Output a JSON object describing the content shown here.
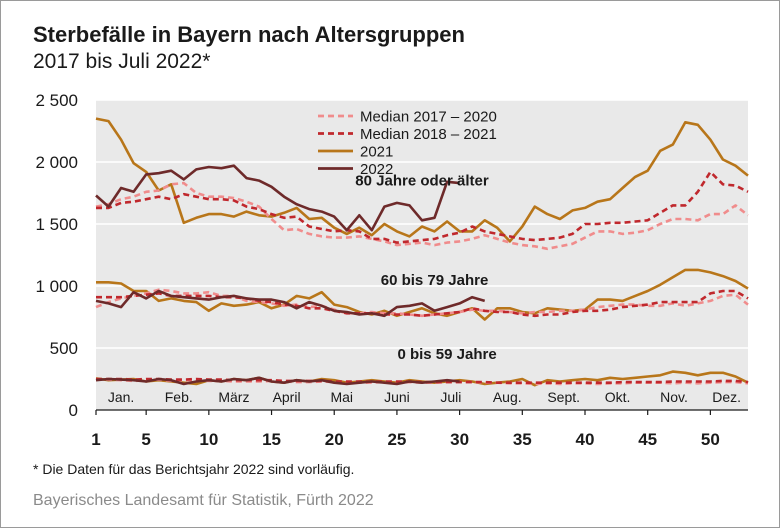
{
  "title": "Sterbefälle in Bayern nach Altersgruppen",
  "subtitle": "2017 bis Juli 2022*",
  "footnote": "* Die Daten für das Berichtsjahr 2022 sind vorläufig.",
  "source": "Bayerisches Landesamt für Statistik, Fürth 2022",
  "chart_data": {
    "type": "line",
    "xlim": [
      1,
      53
    ],
    "ylim": [
      0,
      2500
    ],
    "x_ticks": [
      1,
      5,
      10,
      15,
      20,
      25,
      30,
      35,
      40,
      45,
      50
    ],
    "y_ticks": [
      {
        "value": 0,
        "label": "0"
      },
      {
        "value": 500,
        "label": "500"
      },
      {
        "value": 1000,
        "label": "1 000"
      },
      {
        "value": 1500,
        "label": "1 500"
      },
      {
        "value": 2000,
        "label": "2 000"
      },
      {
        "value": 2500,
        "label": "2 500"
      }
    ],
    "months": [
      {
        "label": "Jan.",
        "week": 3
      },
      {
        "label": "Feb.",
        "week": 7.6
      },
      {
        "label": "März",
        "week": 12
      },
      {
        "label": "April",
        "week": 16.2
      },
      {
        "label": "Mai",
        "week": 20.6
      },
      {
        "label": "Juni",
        "week": 25
      },
      {
        "label": "Juli",
        "week": 29.3
      },
      {
        "label": "Aug.",
        "week": 33.8
      },
      {
        "label": "Sept.",
        "week": 38.3
      },
      {
        "label": "Okt.",
        "week": 42.6
      },
      {
        "label": "Nov.",
        "week": 47.1
      },
      {
        "label": "Dez.",
        "week": 51.3
      }
    ],
    "grid": true,
    "legend_position": "top-right",
    "series_styles": [
      {
        "name": "Median 2017 – 2020",
        "color": "#f08c8c",
        "dash": true
      },
      {
        "name": "Median 2018 – 2021",
        "color": "#c0282d",
        "dash": true
      },
      {
        "name": "2021",
        "color": "#b8761a",
        "dash": false
      },
      {
        "name": "2022",
        "color": "#6e2a2a",
        "dash": false
      }
    ],
    "groups": [
      {
        "label": "80 Jahre oder älter",
        "label_week": 27,
        "label_value": 1810,
        "series": [
          {
            "style": 0,
            "values": [
              1640,
              1660,
              1700,
              1720,
              1760,
              1770,
              1820,
              1830,
              1750,
              1720,
              1720,
              1710,
              1680,
              1640,
              1540,
              1450,
              1460,
              1420,
              1400,
              1390,
              1390,
              1400,
              1380,
              1360,
              1330,
              1340,
              1350,
              1330,
              1350,
              1360,
              1380,
              1410,
              1380,
              1350,
              1330,
              1320,
              1300,
              1320,
              1340,
              1390,
              1440,
              1440,
              1420,
              1430,
              1450,
              1500,
              1540,
              1540,
              1530,
              1580,
              1580,
              1650,
              1570
            ]
          },
          {
            "style": 1,
            "values": [
              1630,
              1630,
              1670,
              1680,
              1700,
              1720,
              1700,
              1740,
              1720,
              1700,
              1700,
              1690,
              1640,
              1620,
              1580,
              1550,
              1560,
              1480,
              1460,
              1440,
              1450,
              1440,
              1380,
              1380,
              1350,
              1360,
              1370,
              1380,
              1410,
              1430,
              1480,
              1440,
              1420,
              1400,
              1380,
              1370,
              1380,
              1390,
              1420,
              1500,
              1500,
              1510,
              1510,
              1520,
              1530,
              1590,
              1650,
              1650,
              1760,
              1920,
              1820,
              1810,
              1760
            ]
          },
          {
            "style": 2,
            "values": [
              2350,
              2330,
              2180,
              1990,
              1920,
              1770,
              1820,
              1510,
              1550,
              1580,
              1580,
              1560,
              1600,
              1570,
              1560,
              1590,
              1630,
              1540,
              1550,
              1470,
              1420,
              1470,
              1410,
              1500,
              1440,
              1400,
              1480,
              1440,
              1520,
              1440,
              1440,
              1530,
              1470,
              1360,
              1480,
              1640,
              1580,
              1540,
              1610,
              1630,
              1680,
              1700,
              1790,
              1880,
              1930,
              2090,
              2140,
              2320,
              2300,
              2180,
              2020,
              1970,
              1890
            ]
          },
          {
            "style": 3,
            "values": [
              1730,
              1640,
              1790,
              1760,
              1900,
              1910,
              1930,
              1860,
              1940,
              1960,
              1950,
              1970,
              1870,
              1850,
              1800,
              1720,
              1660,
              1620,
              1600,
              1560,
              1450,
              1570,
              1450,
              1640,
              1670,
              1650,
              1530,
              1550,
              1840,
              1830
            ]
          }
        ]
      },
      {
        "label": "60 bis 79 Jahre",
        "label_week": 28,
        "label_value": 1010,
        "series": [
          {
            "style": 0,
            "values": [
              830,
              870,
              900,
              920,
              940,
              970,
              960,
              940,
              940,
              950,
              920,
              920,
              880,
              870,
              860,
              840,
              850,
              830,
              840,
              810,
              780,
              780,
              790,
              780,
              780,
              770,
              760,
              770,
              780,
              790,
              810,
              800,
              800,
              790,
              780,
              790,
              790,
              800,
              800,
              810,
              830,
              840,
              850,
              850,
              840,
              840,
              860,
              840,
              860,
              880,
              920,
              930,
              850
            ]
          },
          {
            "style": 1,
            "values": [
              910,
              910,
              910,
              920,
              930,
              940,
              920,
              920,
              920,
              920,
              910,
              910,
              900,
              880,
              870,
              850,
              840,
              820,
              820,
              800,
              780,
              780,
              780,
              770,
              770,
              770,
              760,
              770,
              780,
              790,
              820,
              800,
              790,
              790,
              770,
              760,
              770,
              770,
              790,
              800,
              800,
              810,
              830,
              840,
              850,
              870,
              870,
              870,
              870,
              940,
              960,
              960,
              900
            ]
          },
          {
            "style": 2,
            "values": [
              1030,
              1030,
              1020,
              960,
              960,
              880,
              900,
              880,
              870,
              800,
              860,
              840,
              850,
              870,
              820,
              850,
              920,
              900,
              950,
              850,
              830,
              790,
              770,
              800,
              760,
              790,
              820,
              780,
              760,
              790,
              820,
              730,
              820,
              820,
              790,
              780,
              820,
              810,
              800,
              810,
              890,
              890,
              880,
              920,
              960,
              1010,
              1070,
              1130,
              1130,
              1110,
              1080,
              1040,
              980
            ]
          },
          {
            "style": 3,
            "values": [
              880,
              860,
              830,
              950,
              900,
              960,
              920,
              910,
              900,
              890,
              910,
              920,
              900,
              890,
              890,
              870,
              820,
              870,
              840,
              800,
              790,
              770,
              780,
              760,
              830,
              840,
              860,
              800,
              830,
              860,
              910,
              880
            ]
          }
        ]
      },
      {
        "label": "0 bis 59 Jahre",
        "label_week": 29,
        "label_value": 410,
        "series": [
          {
            "style": 0,
            "values": [
              245,
              245,
              240,
              235,
              240,
              245,
              235,
              240,
              240,
              235,
              235,
              230,
              230,
              230,
              235,
              230,
              225,
              225,
              230,
              225,
              220,
              220,
              220,
              225,
              220,
              225,
              220,
              220,
              225,
              225,
              225,
              220,
              220,
              215,
              215,
              210,
              215,
              210,
              215,
              215,
              210,
              215,
              215,
              220,
              220,
              220,
              215,
              220,
              215,
              220,
              225,
              225,
              215
            ]
          },
          {
            "style": 1,
            "values": [
              250,
              250,
              250,
              245,
              250,
              250,
              245,
              245,
              250,
              245,
              245,
              240,
              240,
              240,
              240,
              235,
              235,
              235,
              235,
              230,
              230,
              230,
              230,
              230,
              230,
              230,
              225,
              225,
              225,
              225,
              225,
              225,
              220,
              220,
              220,
              220,
              220,
              220,
              220,
              220,
              220,
              220,
              225,
              225,
              225,
              225,
              230,
              230,
              230,
              230,
              235,
              235,
              225
            ]
          },
          {
            "style": 2,
            "values": [
              255,
              240,
              245,
              250,
              230,
              240,
              230,
              220,
              210,
              240,
              230,
              250,
              240,
              260,
              230,
              220,
              240,
              230,
              250,
              240,
              220,
              230,
              240,
              230,
              220,
              240,
              230,
              220,
              230,
              240,
              230,
              210,
              220,
              230,
              250,
              200,
              240,
              230,
              240,
              250,
              240,
              260,
              250,
              260,
              270,
              280,
              310,
              300,
              280,
              300,
              300,
              270,
              220
            ]
          },
          {
            "style": 3,
            "values": [
              240,
              250,
              245,
              240,
              230,
              250,
              240,
              210,
              230,
              240,
              230,
              250,
              240,
              260,
              230,
              220,
              240,
              230,
              240,
              220,
              210,
              220,
              230,
              220,
              210,
              230,
              220,
              230,
              240,
              230
            ]
          }
        ]
      }
    ]
  }
}
